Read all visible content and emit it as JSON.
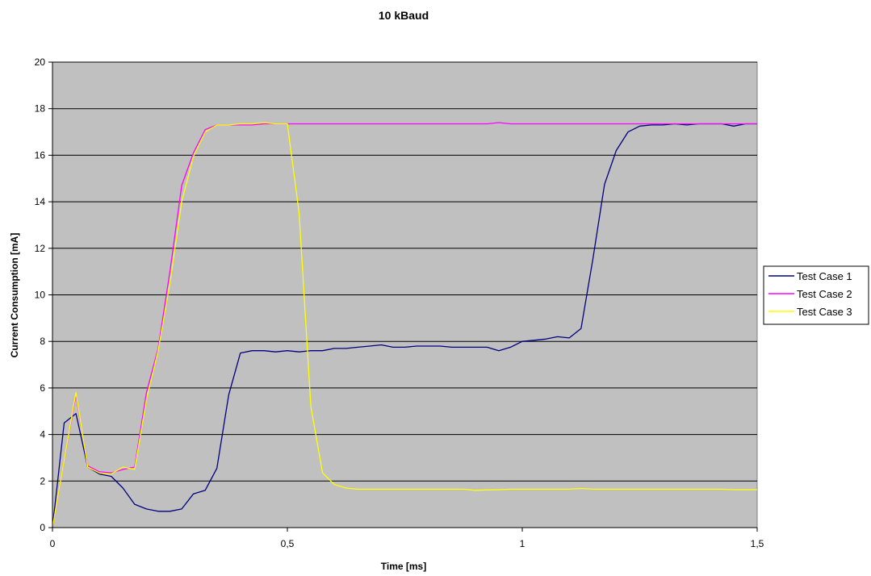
{
  "chart_data": {
    "type": "line",
    "title": "10 kBaud",
    "xlabel": "Time [ms]",
    "ylabel": "Current Consumption [mA]",
    "xlim": [
      0,
      1.5
    ],
    "ylim": [
      0,
      20
    ],
    "x_ticks": [
      0,
      0.5,
      1,
      1.5
    ],
    "x_tick_labels": [
      "0",
      "0,5",
      "1",
      "1,5"
    ],
    "y_ticks": [
      0,
      2,
      4,
      6,
      8,
      10,
      12,
      14,
      16,
      18,
      20
    ],
    "y_tick_labels": [
      "0",
      "2",
      "4",
      "6",
      "8",
      "10",
      "12",
      "14",
      "16",
      "18",
      "20"
    ],
    "grid": "horizontal",
    "plot_background": "#c0c0c0",
    "legend": "right",
    "x": [
      0,
      0.025,
      0.05,
      0.075,
      0.1,
      0.125,
      0.15,
      0.175,
      0.2,
      0.225,
      0.25,
      0.275,
      0.3,
      0.325,
      0.35,
      0.375,
      0.4,
      0.425,
      0.45,
      0.475,
      0.5,
      0.525,
      0.55,
      0.575,
      0.6,
      0.625,
      0.65,
      0.675,
      0.7,
      0.725,
      0.75,
      0.775,
      0.8,
      0.825,
      0.85,
      0.875,
      0.9,
      0.925,
      0.95,
      0.975,
      1.0,
      1.025,
      1.05,
      1.075,
      1.1,
      1.125,
      1.15,
      1.175,
      1.2,
      1.225,
      1.25,
      1.275,
      1.3,
      1.325,
      1.35,
      1.375,
      1.4,
      1.425,
      1.45,
      1.475,
      1.5
    ],
    "series": [
      {
        "name": "Test Case 1",
        "color": "#000080",
        "values": [
          0,
          4.5,
          4.9,
          2.6,
          2.3,
          2.2,
          1.7,
          1.0,
          0.8,
          0.7,
          0.7,
          0.8,
          1.45,
          1.6,
          2.55,
          5.7,
          7.5,
          7.6,
          7.6,
          7.55,
          7.6,
          7.55,
          7.6,
          7.6,
          7.7,
          7.7,
          7.75,
          7.8,
          7.85,
          7.75,
          7.75,
          7.8,
          7.8,
          7.8,
          7.75,
          7.75,
          7.75,
          7.75,
          7.6,
          7.75,
          8.0,
          8.05,
          8.1,
          8.2,
          8.15,
          8.55,
          11.5,
          14.75,
          16.2,
          17.0,
          17.25,
          17.3,
          17.3,
          17.35,
          17.3,
          17.35,
          17.35,
          17.35,
          17.25,
          17.35,
          17.35
        ]
      },
      {
        "name": "Test Case 2",
        "color": "#ff00ff",
        "values": [
          0,
          2.9,
          5.7,
          2.65,
          2.4,
          2.35,
          2.5,
          2.6,
          5.8,
          7.7,
          11.0,
          14.7,
          16.1,
          17.1,
          17.3,
          17.3,
          17.3,
          17.3,
          17.35,
          17.35,
          17.35,
          17.35,
          17.35,
          17.35,
          17.35,
          17.35,
          17.35,
          17.35,
          17.35,
          17.35,
          17.35,
          17.35,
          17.35,
          17.35,
          17.35,
          17.35,
          17.35,
          17.35,
          17.4,
          17.35,
          17.35,
          17.35,
          17.35,
          17.35,
          17.35,
          17.35,
          17.35,
          17.35,
          17.35,
          17.35,
          17.35,
          17.35,
          17.35,
          17.35,
          17.35,
          17.35,
          17.35,
          17.35,
          17.35,
          17.35,
          17.35
        ]
      },
      {
        "name": "Test Case 3",
        "color": "#ffff00",
        "values": [
          0,
          2.9,
          5.8,
          2.6,
          2.35,
          2.3,
          2.6,
          2.5,
          5.5,
          7.6,
          10.5,
          14.0,
          15.95,
          17.0,
          17.3,
          17.3,
          17.35,
          17.35,
          17.4,
          17.35,
          17.35,
          13.5,
          5.2,
          2.35,
          1.85,
          1.7,
          1.65,
          1.65,
          1.65,
          1.65,
          1.65,
          1.65,
          1.65,
          1.65,
          1.65,
          1.65,
          1.6,
          1.62,
          1.63,
          1.65,
          1.65,
          1.65,
          1.65,
          1.65,
          1.65,
          1.68,
          1.65,
          1.65,
          1.65,
          1.65,
          1.65,
          1.65,
          1.65,
          1.65,
          1.65,
          1.65,
          1.65,
          1.65,
          1.63,
          1.63,
          1.63
        ]
      }
    ]
  }
}
